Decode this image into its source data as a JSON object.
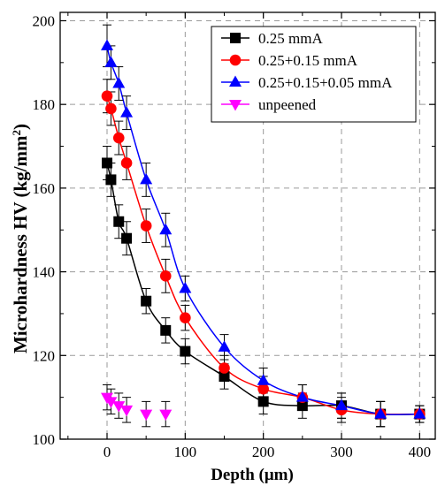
{
  "chart_data": {
    "type": "scatter",
    "xlabel": "Depth (μm)",
    "ylabel": "Microhardness HV (kg/mm²)",
    "ylabel_main": "Microhardness HV (kg/mm",
    "ylabel_sup": "2",
    "ylabel_end": ")",
    "xlim": [
      -60,
      420
    ],
    "ylim": [
      100,
      202
    ],
    "xticks": [
      0,
      100,
      200,
      300,
      400
    ],
    "yticks": [
      100,
      120,
      140,
      160,
      180,
      200
    ],
    "x_minor_step": 50,
    "y_minor_step": 10,
    "grid": true,
    "legend_position": "top-right",
    "series": [
      {
        "name": "0.25 mmA",
        "color": "#000000",
        "marker": "square",
        "x": [
          0,
          5,
          15,
          25,
          50,
          75,
          100,
          150,
          200,
          250,
          300,
          350,
          400
        ],
        "y": [
          166,
          162,
          152,
          148,
          133,
          126,
          121,
          115,
          109,
          108,
          108,
          106,
          106
        ],
        "err": [
          4,
          4,
          4,
          4,
          3,
          3,
          3,
          3,
          3,
          3,
          3,
          3,
          2
        ],
        "fit": true
      },
      {
        "name": "0.25+0.15 mmA",
        "color": "#ff0000",
        "marker": "circle",
        "x": [
          0,
          5,
          15,
          25,
          50,
          75,
          100,
          150,
          200,
          250,
          300,
          350,
          400
        ],
        "y": [
          182,
          179,
          172,
          166,
          151,
          139,
          129,
          117,
          112,
          110,
          107,
          106,
          106
        ],
        "err": [
          4,
          4,
          4,
          4,
          4,
          4,
          3,
          3,
          3,
          3,
          3,
          3,
          2
        ],
        "fit": true
      },
      {
        "name": "0.25+0.15+0.05 mmA",
        "color": "#0000ff",
        "marker": "triangle-up",
        "x": [
          0,
          5,
          15,
          25,
          50,
          75,
          100,
          150,
          200,
          250,
          300,
          350,
          400
        ],
        "y": [
          194,
          190,
          185,
          178,
          162,
          150,
          136,
          122,
          114,
          110,
          108,
          106,
          106
        ],
        "err": [
          5,
          4,
          4,
          4,
          4,
          4,
          3,
          3,
          3,
          3,
          3,
          3,
          2
        ],
        "fit": true
      },
      {
        "name": "unpeened",
        "color": "#ff00ff",
        "marker": "triangle-down",
        "x": [
          0,
          5,
          15,
          25,
          50,
          75
        ],
        "y": [
          110,
          109,
          108,
          107,
          106,
          106
        ],
        "err": [
          3,
          3,
          3,
          3,
          3,
          3
        ],
        "fit": false
      }
    ]
  }
}
